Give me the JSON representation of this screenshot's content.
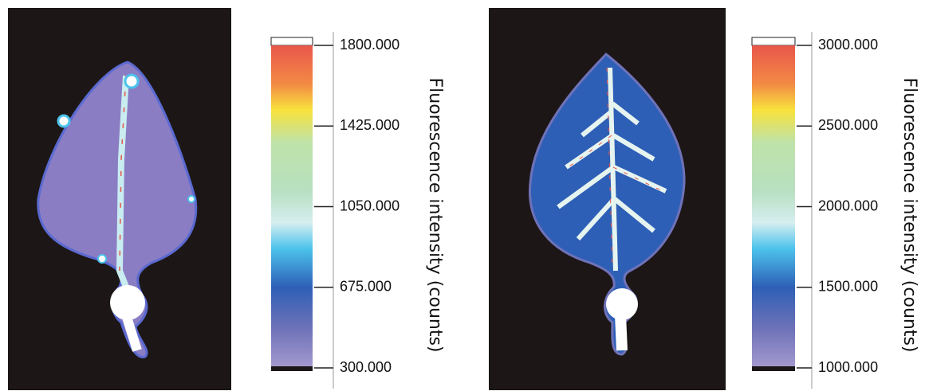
{
  "panels": [
    {
      "colorbar": {
        "lim": [
          300,
          1800
        ],
        "ticks": [
          {
            "value": 300,
            "label": "300.000"
          },
          {
            "value": 675,
            "label": "675.000"
          },
          {
            "value": 1050,
            "label": "1050.000"
          },
          {
            "value": 1425,
            "label": "1425.000"
          },
          {
            "value": 1800,
            "label": "1800.000"
          }
        ],
        "label": "Fluorescence intensity (counts)"
      }
    },
    {
      "colorbar": {
        "lim": [
          1000,
          3000
        ],
        "ticks": [
          {
            "value": 1000,
            "label": "1000.000"
          },
          {
            "value": 1500,
            "label": "1500.000"
          },
          {
            "value": 2000,
            "label": "2000.000"
          },
          {
            "value": 2500,
            "label": "2500.000"
          },
          {
            "value": 3000,
            "label": "3000.000"
          }
        ],
        "label": "Fluorescence intensity (counts)"
      }
    }
  ]
}
